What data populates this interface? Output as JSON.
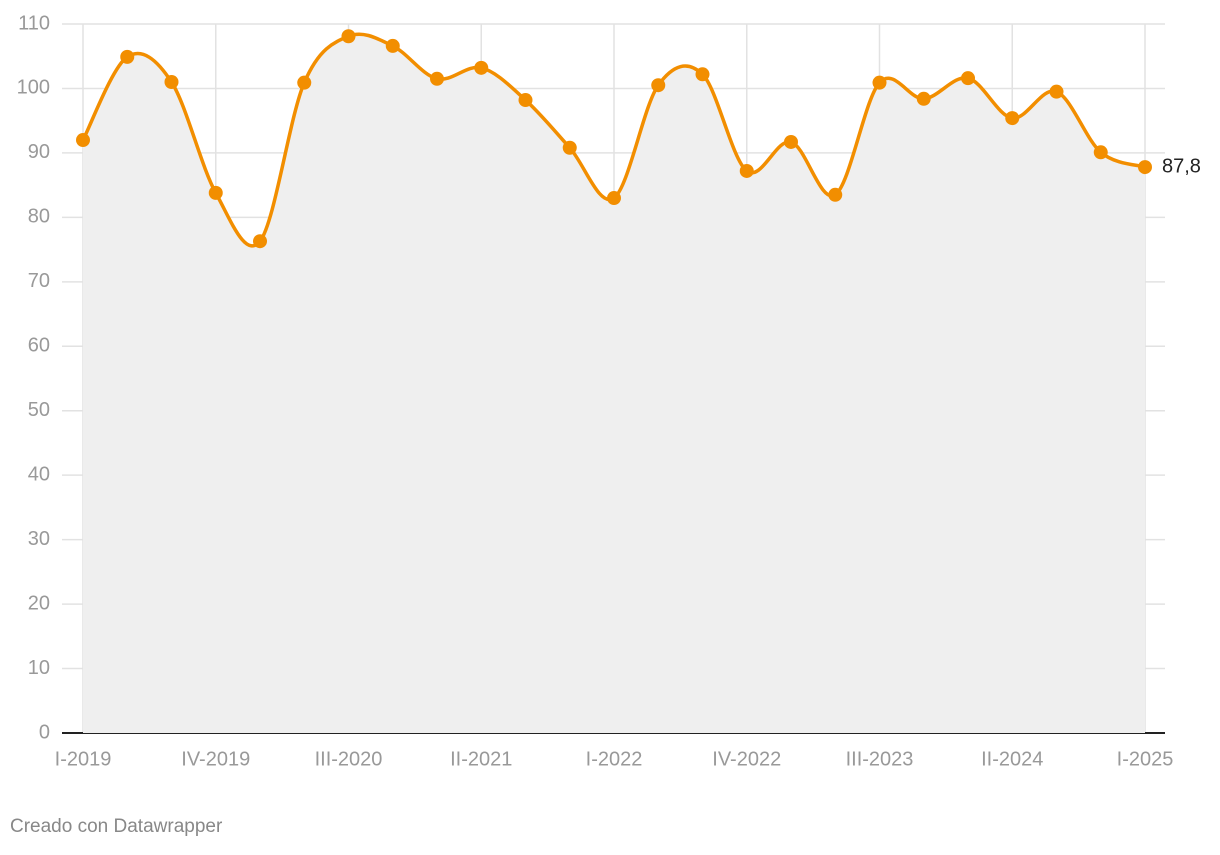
{
  "chart_data": {
    "type": "area-line",
    "categories": [
      "I-2019",
      null,
      null,
      "IV-2019",
      null,
      null,
      "III-2020",
      null,
      null,
      "II-2021",
      null,
      null,
      "I-2022",
      null,
      null,
      "IV-2022",
      null,
      null,
      "III-2023",
      null,
      null,
      "II-2024",
      null,
      null,
      "I-2025"
    ],
    "series": [
      {
        "color": "#f28e00",
        "values": [
          92.0,
          104.9,
          101.0,
          83.8,
          76.3,
          100.9,
          108.1,
          106.6,
          101.5,
          103.2,
          98.2,
          90.8,
          83.0,
          100.5,
          102.2,
          87.2,
          91.7,
          83.5,
          100.9,
          98.4,
          101.6,
          95.4,
          99.5,
          90.1,
          87.8
        ],
        "value_labels": [
          null,
          null,
          null,
          null,
          null,
          null,
          null,
          null,
          null,
          null,
          null,
          null,
          null,
          null,
          null,
          null,
          null,
          null,
          null,
          null,
          null,
          null,
          null,
          null,
          "87,8"
        ]
      }
    ],
    "area_color": "#efefef",
    "ylim": [
      0,
      110
    ],
    "yticks": [
      0,
      10,
      20,
      30,
      40,
      50,
      60,
      70,
      80,
      90,
      100,
      110
    ],
    "grid": true,
    "footer": "Creado con Datawrapper"
  }
}
